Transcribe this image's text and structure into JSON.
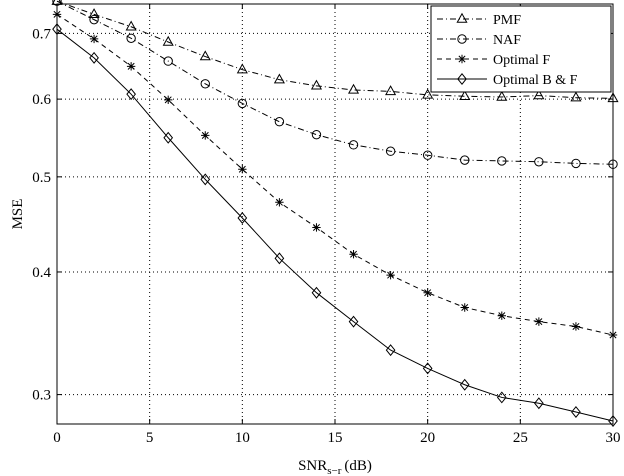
{
  "chart_data": {
    "type": "line",
    "xlabel": "SNR",
    "xlabel_subscript": "s−r",
    "xlabel_unit": "(dB)",
    "ylabel": "MSE",
    "xlim": [
      0,
      30
    ],
    "ylim": [
      0.28,
      0.75
    ],
    "yscale": "log",
    "grid": true,
    "legend_position": "top-right",
    "x_ticks": [
      0,
      5,
      10,
      15,
      20,
      25,
      30
    ],
    "x_tick_labels": [
      "0",
      "5",
      "10",
      "15",
      "20",
      "25",
      "30"
    ],
    "y_ticks": [
      0.3,
      0.4,
      0.5,
      0.6,
      0.7
    ],
    "y_tick_labels": [
      "0.3",
      "0.4",
      "0.5",
      "0.6",
      "0.7"
    ],
    "x": [
      0,
      2,
      4,
      6,
      8,
      10,
      12,
      14,
      16,
      18,
      20,
      22,
      24,
      26,
      28,
      30
    ],
    "series": [
      {
        "name": "PMF",
        "marker": "triangle",
        "dash": "dashdot",
        "values": [
          0.755,
          0.732,
          0.711,
          0.686,
          0.663,
          0.643,
          0.628,
          0.619,
          0.613,
          0.611,
          0.606,
          0.604,
          0.603,
          0.605,
          0.602,
          0.601
        ]
      },
      {
        "name": "NAF",
        "marker": "circle",
        "dash": "dashdot",
        "values": [
          0.755,
          0.723,
          0.692,
          0.656,
          0.622,
          0.594,
          0.569,
          0.552,
          0.539,
          0.531,
          0.526,
          0.52,
          0.519,
          0.518,
          0.516,
          0.515
        ]
      },
      {
        "name": "Optimal F",
        "marker": "star",
        "dash": "dashed",
        "values": [
          0.732,
          0.691,
          0.648,
          0.599,
          0.551,
          0.509,
          0.471,
          0.444,
          0.417,
          0.397,
          0.381,
          0.368,
          0.361,
          0.356,
          0.352,
          0.345
        ]
      },
      {
        "name": "Optimal B & F",
        "marker": "diamond",
        "dash": "solid",
        "values": [
          0.707,
          0.661,
          0.607,
          0.548,
          0.497,
          0.454,
          0.413,
          0.381,
          0.356,
          0.333,
          0.319,
          0.307,
          0.298,
          0.294,
          0.288,
          0.282
        ]
      }
    ]
  }
}
